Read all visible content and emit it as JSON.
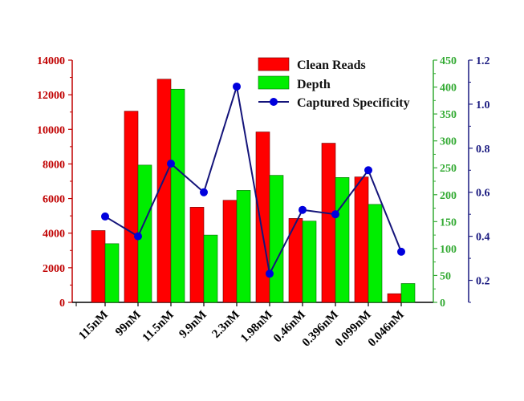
{
  "chart_data": {
    "type": "bar",
    "categories": [
      "115nM",
      "99nM",
      "11.5nM",
      "9.9nM",
      "2.3nM",
      "1.98nM",
      "0.46nM",
      "0.396nM",
      "0.099nM",
      "0.046nM"
    ],
    "series": [
      {
        "name": "Clean Reads",
        "axis": "left",
        "type": "bar",
        "color": "#ff0000",
        "values": [
          4150,
          11050,
          12900,
          5500,
          5900,
          9850,
          4850,
          9200,
          7250,
          500
        ]
      },
      {
        "name": "Depth",
        "axis": "right1",
        "type": "bar",
        "color": "#00ee00",
        "values": [
          109,
          255,
          396,
          125,
          208,
          236,
          151,
          232,
          182,
          35
        ]
      },
      {
        "name": "Captured Specificity",
        "axis": "right2",
        "type": "line",
        "color": "#0000dd",
        "values": [
          0.49,
          0.4,
          0.73,
          0.6,
          1.08,
          0.23,
          0.52,
          0.5,
          0.7,
          0.33
        ]
      }
    ],
    "axes": {
      "left": {
        "range": [
          0,
          14000
        ],
        "ticks": [
          "0",
          "2000",
          "4000",
          "6000",
          "8000",
          "10000",
          "12000",
          "14000"
        ],
        "color": "#c00000"
      },
      "right1": {
        "range": [
          0,
          450
        ],
        "ticks": [
          "0",
          "50",
          "100",
          "150",
          "200",
          "250",
          "300",
          "350",
          "400",
          "450"
        ],
        "color": "#33aa33"
      },
      "right2": {
        "range": [
          0.1,
          1.2
        ],
        "ticks": [
          "0.2",
          "0.4",
          "0.6",
          "0.8",
          "1.0",
          "1.2"
        ],
        "color": "#1a1a80"
      }
    },
    "legend": "top-right",
    "title": "",
    "xlabel": "",
    "ylabel": ""
  }
}
